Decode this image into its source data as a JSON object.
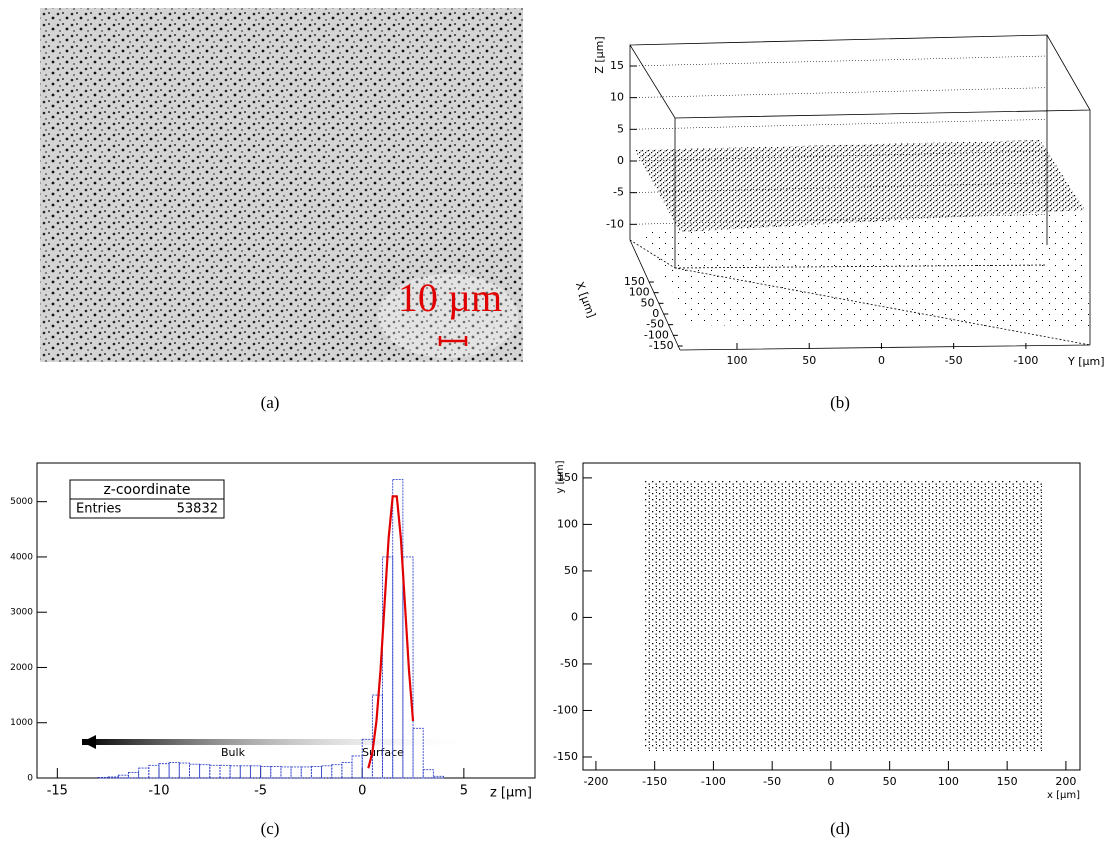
{
  "chart_data": [
    {
      "type": "image",
      "annotation": "10 µm",
      "caption": "(a)"
    },
    {
      "type": "scatter3d",
      "caption": "(b)",
      "zlabel": "Z [µm]",
      "zlim": [
        -15,
        15
      ],
      "zticks": [
        -10,
        -5,
        0,
        5,
        10,
        15
      ],
      "xlabel": "X [µm]",
      "xlim": [
        -150,
        150
      ],
      "xticks": [
        150,
        100,
        50,
        0,
        -50,
        -100,
        -150
      ],
      "ylabel": "Y [µm]",
      "ylim": [
        -125,
        145
      ],
      "yticks": [
        100,
        50,
        0,
        -50,
        -100
      ]
    },
    {
      "type": "histogram",
      "caption": "(c)",
      "xlabel": "z [µm]",
      "stats_title": "z-coordinate",
      "stats_label": "Entries",
      "stats_value": "53832",
      "annotations": [
        "Bulk",
        "Surface"
      ],
      "xlim": [
        -16,
        8.5
      ],
      "xticks": [
        -15,
        -10,
        -5,
        0,
        5
      ],
      "ylim": [
        0,
        5700
      ],
      "yticks": [
        0,
        1000,
        2000,
        3000,
        4000,
        5000
      ],
      "bins": [
        -13,
        -12.5,
        -12,
        -11.5,
        -11,
        -10.5,
        -10,
        -9.5,
        -9,
        -8.5,
        -8,
        -7.5,
        -7,
        -6.5,
        -6,
        -5.5,
        -5,
        -4.5,
        -4,
        -3.5,
        -3,
        -2.5,
        -2,
        -1.5,
        -1,
        -0.5,
        0,
        0.5,
        1,
        1.5,
        2,
        2.5,
        3,
        3.5,
        4
      ],
      "counts": [
        10,
        20,
        50,
        100,
        180,
        230,
        260,
        280,
        270,
        250,
        240,
        230,
        230,
        220,
        220,
        220,
        210,
        210,
        200,
        200,
        200,
        210,
        220,
        240,
        280,
        400,
        700,
        1500,
        4000,
        5400,
        4000,
        900,
        150,
        30
      ],
      "color": "#3344cc",
      "fit": {
        "color": "#e00000",
        "x": [
          0.3,
          0.5,
          0.7,
          0.9,
          1.1,
          1.3,
          1.5,
          1.7,
          1.9,
          2.1,
          2.3,
          2.5
        ],
        "y": [
          177,
          463,
          1030,
          1951,
          3154,
          4343,
          5097,
          5097,
          4343,
          3154,
          1951,
          1030
        ]
      }
    },
    {
      "type": "scatter",
      "caption": "(d)",
      "xlabel": "x [µm]",
      "ylabel": "y [µm]",
      "xlim": [
        -211,
        212
      ],
      "xticks": [
        -200,
        -150,
        -100,
        -50,
        0,
        50,
        100,
        150,
        200
      ],
      "ylim": [
        -164,
        166
      ],
      "yticks": [
        -150,
        -100,
        -50,
        0,
        50,
        100,
        150
      ]
    }
  ]
}
